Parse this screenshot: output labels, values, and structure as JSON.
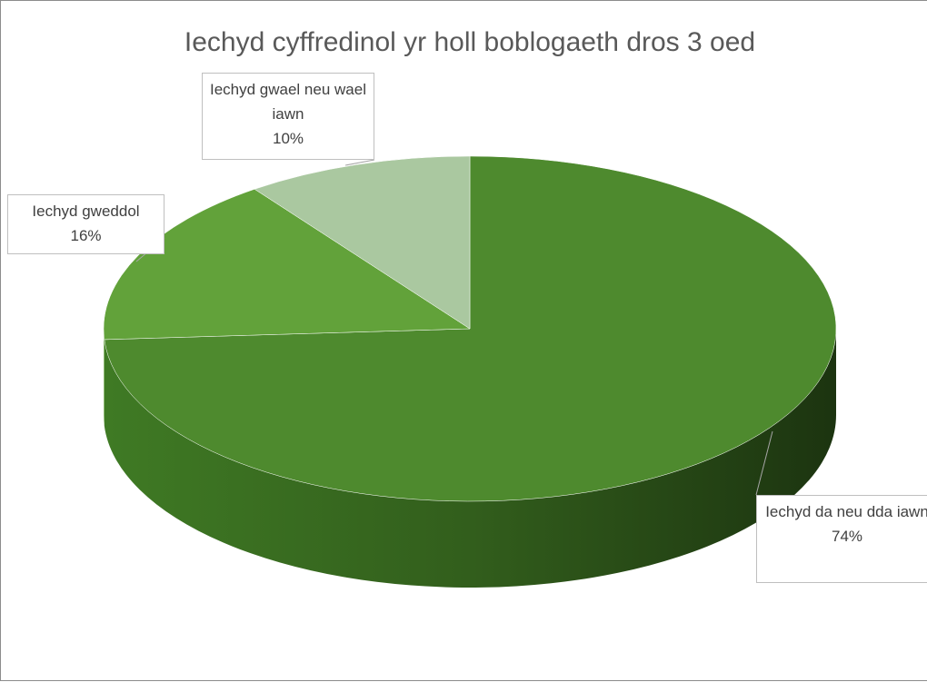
{
  "chart_data": {
    "type": "pie",
    "title": "Iechyd cyffredinol yr holl boblogaeth dros 3 oed",
    "categories": [
      "Iechyd da neu dda iawn",
      "Iechyd gweddol",
      "Iechyd gwael neu wael iawn"
    ],
    "values": [
      74,
      16,
      10
    ],
    "value_labels": [
      "74%",
      "16%",
      "10%"
    ],
    "colors": [
      "#4e8a2e",
      "#62a23a",
      "#aac8a0"
    ]
  }
}
